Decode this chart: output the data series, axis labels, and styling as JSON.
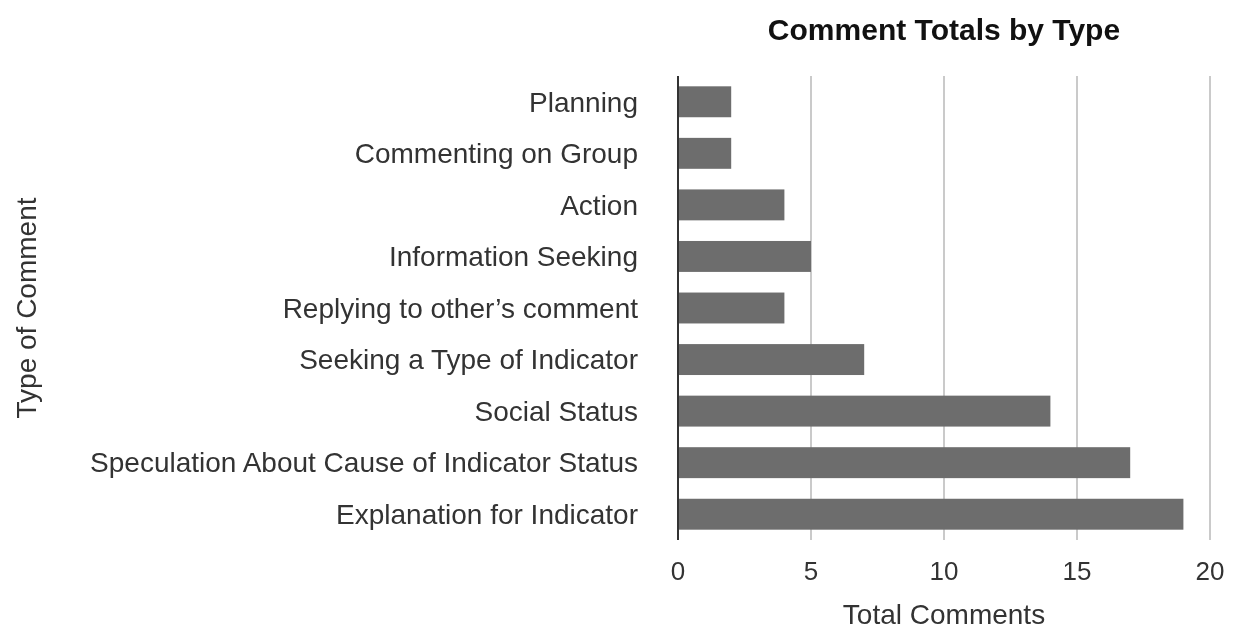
{
  "chart_data": {
    "type": "bar",
    "orientation": "horizontal",
    "title": "Comment Totals by Type",
    "xlabel": "Total Comments",
    "ylabel": "Type of Comment",
    "categories": [
      "Planning",
      "Commenting on Group",
      "Action",
      "Information Seeking",
      "Replying to other’s comment",
      "Seeking a Type of Indicator",
      "Social Status",
      "Speculation About Cause of Indicator Status",
      "Explanation for Indicator"
    ],
    "values": [
      2,
      2,
      4,
      5,
      4,
      7,
      14,
      17,
      19
    ],
    "color": "#6d6d6d",
    "xlim": [
      0,
      20
    ],
    "xticks": [
      0,
      5,
      10,
      15,
      20
    ],
    "grid": "x"
  }
}
